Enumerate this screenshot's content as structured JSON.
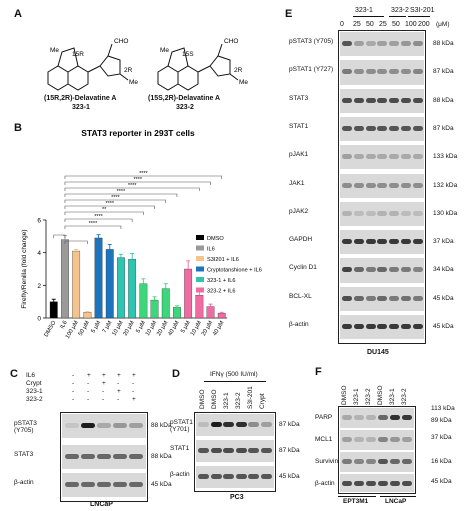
{
  "panelA": {
    "label": "A",
    "structures": [
      {
        "name_line1": "(15R,2R)-Delavatine A",
        "name_line2": "323-1",
        "stereo1": "15R",
        "stereo2": "2R",
        "me": "Me",
        "cho": "CHO"
      },
      {
        "name_line1": "(15S,2R)-Delavatine A",
        "name_line2": "323-2",
        "stereo1": "15S",
        "stereo2": "2R",
        "me": "Me",
        "cho": "CHO"
      }
    ]
  },
  "panelB": {
    "label": "B",
    "sig": [
      "****",
      "****",
      "****",
      "****",
      "****",
      "****",
      "**",
      "****",
      "****"
    ]
  },
  "chart_data": {
    "type": "bar",
    "title": "STAT3 reporter in 293T cells",
    "ylabel": "Firefly/Renilla (fold change)",
    "ylim": [
      0,
      6
    ],
    "yticks": [
      0,
      2,
      4,
      6
    ],
    "categories": [
      "DMSO",
      "IL6",
      "100 μM",
      "50 μM",
      "5 μM",
      "7 μM",
      "10 μM",
      "20 μM",
      "5 μM",
      "10 μM",
      "20 μM",
      "40 μM",
      "5 μM",
      "10 μM",
      "20 μM",
      "40 μM"
    ],
    "values": [
      1.0,
      4.8,
      4.1,
      0.35,
      4.9,
      4.2,
      3.7,
      3.6,
      2.1,
      1.1,
      1.8,
      0.65,
      3.0,
      1.4,
      0.7,
      0.3
    ],
    "errors": [
      0.15,
      0.25,
      0.1,
      0.05,
      0.2,
      0.3,
      0.2,
      0.35,
      0.3,
      0.2,
      0.3,
      0.1,
      0.5,
      0.25,
      0.15,
      0.05
    ],
    "colors": [
      "#000000",
      "#9a9a9a",
      "#f3c48e",
      "#f3c48e",
      "#1b74bd",
      "#1b74bd",
      "#2ec4b2",
      "#2ec4b2",
      "#3dd67a",
      "#3dd67a",
      "#3dd67a",
      "#3dd67a",
      "#f06ba2",
      "#f06ba2",
      "#f06ba2",
      "#f06ba2"
    ],
    "legend": [
      {
        "name": "DMSO",
        "color": "#000000"
      },
      {
        "name": "IL6",
        "color": "#9a9a9a"
      },
      {
        "name": "S3I201 + IL6",
        "color": "#f3c48e"
      },
      {
        "name": "Cryptotanshione + IL6",
        "color": "#1b74bd"
      },
      {
        "name": "323-1 + IL6",
        "color": "#2ec4b2"
      },
      {
        "name": "323-2 + IL6",
        "color": "#f06ba2"
      }
    ],
    "legend_position": "right"
  },
  "panelC": {
    "label": "C",
    "row_labels": [
      "IL6",
      "Crypt",
      "323-1",
      "323-2"
    ],
    "row_signs": [
      [
        "-",
        "+",
        "+",
        "+",
        "+"
      ],
      [
        "-",
        "-",
        "+",
        "-",
        "-"
      ],
      [
        "-",
        "-",
        "-",
        "+",
        "-"
      ],
      [
        "-",
        "-",
        "-",
        "-",
        "+"
      ]
    ],
    "blots": [
      "pSTAT3 (Y705)",
      "STAT3",
      "β-actin"
    ],
    "sizes": [
      "88 kDa",
      "88 kDa",
      "45 kDa"
    ],
    "cell": "LNCaP"
  },
  "panelD": {
    "label": "D",
    "treatment": "IFNγ (500 IU/ml)",
    "lanes": [
      "DMSO",
      "DMSO",
      "323-1",
      "323-2",
      "S3I-201",
      "Crypt"
    ],
    "blots": [
      "pSTAT1 (Y701)",
      "STAT1",
      "β-actin"
    ],
    "sizes": [
      "87 kDa",
      "87 kDa",
      "45 kDa"
    ],
    "cell": "PC3"
  },
  "panelE": {
    "label": "E",
    "groups": [
      "323-1",
      "323-2",
      "S3I-201"
    ],
    "doses": [
      "0",
      "25",
      "50",
      "25",
      "50",
      "100",
      "200"
    ],
    "unit": "(μM)",
    "blots": [
      "pSTAT3 (Y705)",
      "pSTAT1 (Y727)",
      "STAT3",
      "STAT1",
      "pJAK1",
      "JAK1",
      "pJAK2",
      "GAPDH",
      "Cyclin D1",
      "BCL-XL",
      "β-actin"
    ],
    "sizes": [
      "88 kDa",
      "87 kDa",
      "88 kDa",
      "87 kDa",
      "133 kDa",
      "132 kDa",
      "130 kDa",
      "37 kDa",
      "34 kDa",
      "45 kDa",
      "45 kDa"
    ],
    "cell": "DU145"
  },
  "panelF": {
    "label": "F",
    "lanes": [
      "DMSO",
      "323-1",
      "323-2",
      "DMSO",
      "323-1",
      "323-2"
    ],
    "blots": [
      "PARP",
      "MCL1",
      "Survivin",
      "β-actin"
    ],
    "sizes": [
      "113 kDa",
      "89 kDa",
      "37 kDa",
      "16 kDa",
      "45 kDa"
    ],
    "cells": [
      "EPT3M1",
      "LNCaP"
    ]
  }
}
